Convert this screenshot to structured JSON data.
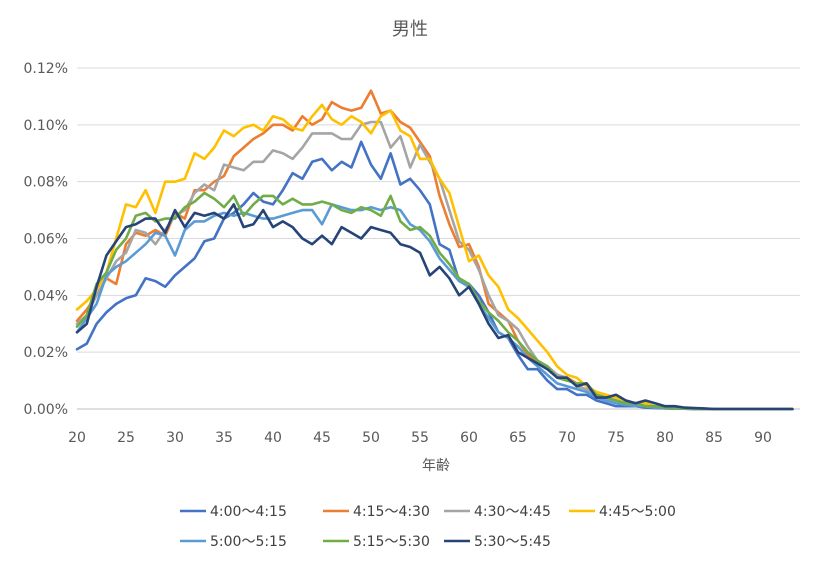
{
  "chart_data": {
    "type": "line",
    "title": "男性",
    "xlabel": "年齢",
    "ylabel": "",
    "xlim": [
      20,
      93
    ],
    "ylim": [
      0,
      0.12
    ],
    "x_ticks": [
      20,
      25,
      30,
      35,
      40,
      45,
      50,
      55,
      60,
      65,
      70,
      75,
      80,
      85,
      90
    ],
    "y_ticks": [
      0,
      0.02,
      0.04,
      0.06,
      0.08,
      0.1,
      0.12
    ],
    "y_tick_labels": [
      "0.00%",
      "0.02%",
      "0.04%",
      "0.06%",
      "0.08%",
      "0.10%",
      "0.12%"
    ],
    "grid": "horizontal",
    "legend_position": "bottom",
    "x": [
      20,
      21,
      22,
      23,
      24,
      25,
      26,
      27,
      28,
      29,
      30,
      31,
      32,
      33,
      34,
      35,
      36,
      37,
      38,
      39,
      40,
      41,
      42,
      43,
      44,
      45,
      46,
      47,
      48,
      49,
      50,
      51,
      52,
      53,
      54,
      55,
      56,
      57,
      58,
      59,
      60,
      61,
      62,
      63,
      64,
      65,
      66,
      67,
      68,
      69,
      70,
      71,
      72,
      73,
      74,
      75,
      76,
      77,
      78,
      79,
      80,
      81,
      82,
      83,
      84,
      85,
      86,
      87,
      88,
      89,
      90,
      91,
      92,
      93
    ],
    "series": [
      {
        "name": "4:00～4:15",
        "color": "#4472C4",
        "values": [
          0.021,
          0.023,
          0.03,
          0.034,
          0.037,
          0.039,
          0.04,
          0.046,
          0.045,
          0.043,
          0.047,
          0.05,
          0.053,
          0.059,
          0.06,
          0.067,
          0.069,
          0.072,
          0.076,
          0.073,
          0.072,
          0.077,
          0.083,
          0.081,
          0.087,
          0.088,
          0.084,
          0.087,
          0.085,
          0.094,
          0.086,
          0.081,
          0.09,
          0.079,
          0.081,
          0.077,
          0.072,
          0.058,
          0.056,
          0.045,
          0.044,
          0.04,
          0.034,
          0.027,
          0.025,
          0.019,
          0.014,
          0.014,
          0.01,
          0.007,
          0.007,
          0.005,
          0.005,
          0.003,
          0.002,
          0.001,
          0.001,
          0.001,
          0.0005,
          0.0003,
          0.0002,
          0.0001,
          0.0001,
          0,
          0,
          0,
          0,
          0,
          0,
          0,
          0,
          0,
          0,
          0
        ]
      },
      {
        "name": "4:15～4:30",
        "color": "#ED7D31",
        "values": [
          0.031,
          0.035,
          0.04,
          0.046,
          0.044,
          0.058,
          0.062,
          0.061,
          0.063,
          0.061,
          0.069,
          0.067,
          0.077,
          0.077,
          0.08,
          0.082,
          0.089,
          0.092,
          0.095,
          0.097,
          0.1,
          0.1,
          0.098,
          0.103,
          0.1,
          0.102,
          0.108,
          0.106,
          0.105,
          0.106,
          0.112,
          0.104,
          0.105,
          0.101,
          0.099,
          0.094,
          0.089,
          0.075,
          0.065,
          0.057,
          0.058,
          0.05,
          0.037,
          0.034,
          0.031,
          0.024,
          0.019,
          0.017,
          0.015,
          0.012,
          0.011,
          0.009,
          0.009,
          0.005,
          0.004,
          0.003,
          0.002,
          0.001,
          0.001,
          0.0005,
          0.0003,
          0.0002,
          0.0001,
          0,
          0,
          0,
          0,
          0,
          0,
          0,
          0,
          0,
          0,
          0
        ]
      },
      {
        "name": "4:30～4:45",
        "color": "#A5A5A5",
        "values": [
          0.03,
          0.033,
          0.04,
          0.046,
          0.052,
          0.055,
          0.063,
          0.062,
          0.058,
          0.063,
          0.068,
          0.07,
          0.076,
          0.079,
          0.077,
          0.086,
          0.085,
          0.084,
          0.087,
          0.087,
          0.091,
          0.09,
          0.088,
          0.092,
          0.097,
          0.097,
          0.097,
          0.095,
          0.095,
          0.1,
          0.101,
          0.101,
          0.092,
          0.096,
          0.085,
          0.093,
          0.087,
          0.081,
          0.07,
          0.059,
          0.056,
          0.049,
          0.04,
          0.033,
          0.031,
          0.028,
          0.022,
          0.017,
          0.015,
          0.012,
          0.011,
          0.008,
          0.007,
          0.005,
          0.004,
          0.003,
          0.002,
          0.001,
          0.001,
          0.0005,
          0.0003,
          0.0002,
          0.0001,
          0,
          0,
          0,
          0,
          0,
          0,
          0,
          0,
          0,
          0,
          0
        ]
      },
      {
        "name": "4:45～5:00",
        "color": "#FFC000",
        "values": [
          0.035,
          0.038,
          0.042,
          0.048,
          0.06,
          0.072,
          0.071,
          0.077,
          0.069,
          0.08,
          0.08,
          0.081,
          0.09,
          0.088,
          0.092,
          0.098,
          0.096,
          0.099,
          0.1,
          0.098,
          0.103,
          0.102,
          0.099,
          0.098,
          0.103,
          0.107,
          0.102,
          0.1,
          0.103,
          0.101,
          0.097,
          0.103,
          0.105,
          0.098,
          0.096,
          0.088,
          0.088,
          0.081,
          0.076,
          0.064,
          0.052,
          0.054,
          0.047,
          0.043,
          0.035,
          0.032,
          0.028,
          0.024,
          0.02,
          0.015,
          0.012,
          0.011,
          0.008,
          0.006,
          0.005,
          0.004,
          0.003,
          0.002,
          0.002,
          0.001,
          0.001,
          0.0005,
          0.0003,
          0.0002,
          0.0001,
          0,
          0,
          0,
          0,
          0,
          0,
          0,
          0,
          0
        ]
      },
      {
        "name": "5:00～5:15",
        "color": "#5B9BD5",
        "values": [
          0.027,
          0.032,
          0.037,
          0.047,
          0.05,
          0.052,
          0.055,
          0.058,
          0.062,
          0.061,
          0.054,
          0.063,
          0.066,
          0.066,
          0.068,
          0.069,
          0.068,
          0.069,
          0.068,
          0.067,
          0.067,
          0.068,
          0.069,
          0.07,
          0.07,
          0.065,
          0.072,
          0.071,
          0.07,
          0.07,
          0.071,
          0.07,
          0.071,
          0.07,
          0.065,
          0.063,
          0.059,
          0.053,
          0.049,
          0.045,
          0.043,
          0.037,
          0.032,
          0.027,
          0.025,
          0.022,
          0.018,
          0.015,
          0.012,
          0.009,
          0.008,
          0.007,
          0.006,
          0.004,
          0.003,
          0.002,
          0.0015,
          0.001,
          0.001,
          0.0005,
          0.0003,
          0.0002,
          0.0001,
          0,
          0,
          0,
          0,
          0,
          0,
          0,
          0,
          0,
          0,
          0
        ]
      },
      {
        "name": "5:15～5:30",
        "color": "#70AD47",
        "values": [
          0.029,
          0.033,
          0.044,
          0.048,
          0.056,
          0.06,
          0.068,
          0.069,
          0.066,
          0.067,
          0.067,
          0.071,
          0.073,
          0.076,
          0.074,
          0.071,
          0.075,
          0.068,
          0.072,
          0.075,
          0.075,
          0.072,
          0.074,
          0.072,
          0.072,
          0.073,
          0.072,
          0.07,
          0.069,
          0.071,
          0.07,
          0.068,
          0.075,
          0.066,
          0.063,
          0.064,
          0.061,
          0.055,
          0.051,
          0.046,
          0.044,
          0.038,
          0.034,
          0.031,
          0.027,
          0.024,
          0.02,
          0.017,
          0.015,
          0.011,
          0.01,
          0.009,
          0.009,
          0.005,
          0.004,
          0.003,
          0.002,
          0.002,
          0.001,
          0.001,
          0.0005,
          0.0003,
          0.0002,
          0,
          0,
          0,
          0,
          0,
          0,
          0,
          0,
          0,
          0,
          0
        ]
      },
      {
        "name": "5:30～5:45",
        "color": "#264478",
        "values": [
          0.027,
          0.03,
          0.043,
          0.054,
          0.059,
          0.064,
          0.065,
          0.067,
          0.067,
          0.062,
          0.07,
          0.064,
          0.069,
          0.068,
          0.069,
          0.067,
          0.072,
          0.064,
          0.065,
          0.07,
          0.064,
          0.066,
          0.064,
          0.06,
          0.058,
          0.061,
          0.058,
          0.064,
          0.062,
          0.06,
          0.064,
          0.063,
          0.062,
          0.058,
          0.057,
          0.055,
          0.047,
          0.05,
          0.046,
          0.04,
          0.043,
          0.037,
          0.03,
          0.025,
          0.026,
          0.02,
          0.018,
          0.016,
          0.014,
          0.011,
          0.011,
          0.008,
          0.009,
          0.004,
          0.004,
          0.005,
          0.003,
          0.002,
          0.003,
          0.002,
          0.001,
          0.001,
          0.0005,
          0.0003,
          0.0002,
          0,
          0,
          0,
          0,
          0,
          0,
          0,
          0,
          0
        ]
      }
    ]
  }
}
